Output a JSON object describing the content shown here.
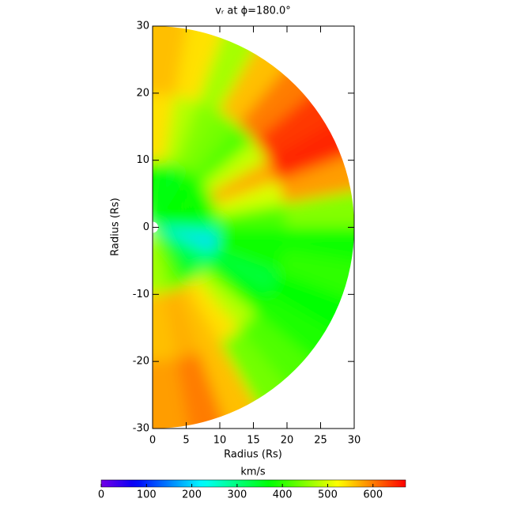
{
  "chart_data": {
    "type": "polar-field",
    "title": "vᵣ at ϕ=180.0°",
    "x_label": "Radius (Rs)",
    "y_label": "Radius (Rs)",
    "xlim": [
      0,
      30
    ],
    "ylim": [
      -30,
      30
    ],
    "xticks": [
      0,
      5,
      10,
      15,
      20,
      25,
      30
    ],
    "yticks": [
      -30,
      -20,
      -10,
      0,
      10,
      20,
      30
    ],
    "theta": [
      5,
      15,
      25,
      35,
      45,
      55,
      65,
      75,
      85,
      95,
      105,
      115,
      125,
      135,
      145,
      155,
      165,
      175
    ],
    "rings": [
      {
        "radius": 5,
        "values": [
          380,
          360,
          360,
          380,
          370,
          380,
          370,
          380,
          360,
          270,
          200,
          280,
          320,
          340,
          360,
          420,
          450,
          470
        ]
      },
      {
        "radius": 15,
        "values": [
          540,
          480,
          450,
          440,
          420,
          490,
          570,
          500,
          420,
          380,
          380,
          340,
          370,
          480,
          540,
          560,
          570,
          560
        ]
      },
      {
        "radius": 25,
        "values": [
          560,
          540,
          470,
          560,
          600,
          640,
          650,
          580,
          450,
          380,
          400,
          370,
          390,
          420,
          440,
          560,
          600,
          580
        ]
      }
    ],
    "colorbar_label": "km/s",
    "clim": [
      0,
      672
    ],
    "colorbar_ticks": [
      0,
      100,
      200,
      300,
      400,
      500,
      600
    ]
  }
}
